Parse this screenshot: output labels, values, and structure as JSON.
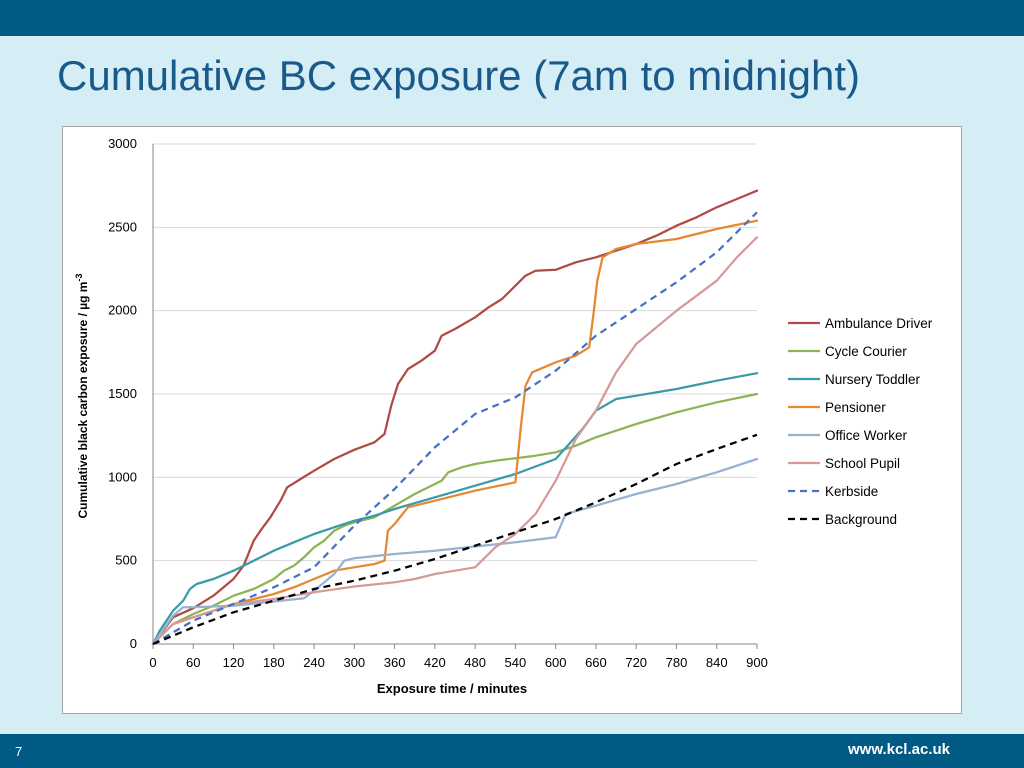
{
  "slide": {
    "title": "Cumulative BC exposure (7am to midnight)",
    "number": "7",
    "url": "www.kcl.ac.uk"
  },
  "colors": {
    "bar": "#005a84",
    "background": "#d5eef6",
    "title": "#1a5a8a"
  },
  "chart_data": {
    "type": "line",
    "xlabel": "Exposure time / minutes",
    "ylabel": "Cumulative black carbon exposure / µg m",
    "ylabel_superscript": "-3",
    "xlim": [
      0,
      900
    ],
    "ylim": [
      0,
      3000
    ],
    "xticks": [
      0,
      60,
      120,
      180,
      240,
      300,
      360,
      420,
      480,
      540,
      600,
      660,
      720,
      780,
      840,
      900
    ],
    "yticks": [
      0,
      500,
      1000,
      1500,
      2000,
      2500,
      3000
    ],
    "grid": "horizontal",
    "legend_position": "right",
    "series": [
      {
        "name": "Ambulance Driver",
        "color": "#b04a45",
        "dash": "solid",
        "points": [
          [
            0,
            0
          ],
          [
            30,
            160
          ],
          [
            60,
            215
          ],
          [
            90,
            290
          ],
          [
            120,
            390
          ],
          [
            135,
            470
          ],
          [
            150,
            620
          ],
          [
            160,
            680
          ],
          [
            175,
            760
          ],
          [
            190,
            860
          ],
          [
            200,
            940
          ],
          [
            220,
            990
          ],
          [
            240,
            1040
          ],
          [
            270,
            1110
          ],
          [
            300,
            1165
          ],
          [
            330,
            1210
          ],
          [
            345,
            1260
          ],
          [
            355,
            1430
          ],
          [
            365,
            1560
          ],
          [
            380,
            1650
          ],
          [
            400,
            1700
          ],
          [
            420,
            1760
          ],
          [
            430,
            1850
          ],
          [
            450,
            1890
          ],
          [
            480,
            1960
          ],
          [
            500,
            2020
          ],
          [
            520,
            2070
          ],
          [
            540,
            2150
          ],
          [
            555,
            2210
          ],
          [
            570,
            2240
          ],
          [
            600,
            2245
          ],
          [
            630,
            2290
          ],
          [
            660,
            2320
          ],
          [
            690,
            2360
          ],
          [
            720,
            2400
          ],
          [
            750,
            2450
          ],
          [
            780,
            2510
          ],
          [
            810,
            2560
          ],
          [
            840,
            2620
          ],
          [
            870,
            2670
          ],
          [
            900,
            2720
          ]
        ]
      },
      {
        "name": "Cycle Courier",
        "color": "#8db352",
        "dash": "solid",
        "points": [
          [
            0,
            0
          ],
          [
            30,
            120
          ],
          [
            60,
            180
          ],
          [
            90,
            230
          ],
          [
            120,
            290
          ],
          [
            150,
            330
          ],
          [
            180,
            390
          ],
          [
            195,
            440
          ],
          [
            210,
            470
          ],
          [
            225,
            520
          ],
          [
            240,
            580
          ],
          [
            255,
            620
          ],
          [
            270,
            680
          ],
          [
            285,
            710
          ],
          [
            300,
            730
          ],
          [
            330,
            760
          ],
          [
            360,
            830
          ],
          [
            390,
            900
          ],
          [
            420,
            960
          ],
          [
            430,
            980
          ],
          [
            440,
            1030
          ],
          [
            460,
            1060
          ],
          [
            480,
            1080
          ],
          [
            510,
            1100
          ],
          [
            540,
            1115
          ],
          [
            570,
            1130
          ],
          [
            600,
            1150
          ],
          [
            630,
            1190
          ],
          [
            660,
            1240
          ],
          [
            690,
            1280
          ],
          [
            720,
            1320
          ],
          [
            780,
            1390
          ],
          [
            840,
            1450
          ],
          [
            900,
            1500
          ]
        ]
      },
      {
        "name": "Nursery Toddler",
        "color": "#3a9aa8",
        "dash": "solid",
        "points": [
          [
            0,
            0
          ],
          [
            10,
            80
          ],
          [
            20,
            140
          ],
          [
            30,
            200
          ],
          [
            45,
            260
          ],
          [
            55,
            330
          ],
          [
            65,
            360
          ],
          [
            90,
            390
          ],
          [
            120,
            440
          ],
          [
            150,
            500
          ],
          [
            180,
            560
          ],
          [
            210,
            610
          ],
          [
            240,
            660
          ],
          [
            270,
            700
          ],
          [
            300,
            740
          ],
          [
            330,
            770
          ],
          [
            360,
            810
          ],
          [
            420,
            880
          ],
          [
            480,
            950
          ],
          [
            540,
            1020
          ],
          [
            600,
            1110
          ],
          [
            620,
            1200
          ],
          [
            640,
            1290
          ],
          [
            660,
            1400
          ],
          [
            690,
            1470
          ],
          [
            720,
            1490
          ],
          [
            780,
            1530
          ],
          [
            840,
            1580
          ],
          [
            900,
            1625
          ]
        ]
      },
      {
        "name": "Pensioner",
        "color": "#e48932",
        "dash": "solid",
        "points": [
          [
            0,
            0
          ],
          [
            30,
            120
          ],
          [
            60,
            160
          ],
          [
            90,
            200
          ],
          [
            120,
            240
          ],
          [
            150,
            270
          ],
          [
            180,
            300
          ],
          [
            210,
            340
          ],
          [
            240,
            390
          ],
          [
            270,
            440
          ],
          [
            300,
            460
          ],
          [
            330,
            480
          ],
          [
            345,
            500
          ],
          [
            350,
            680
          ],
          [
            360,
            720
          ],
          [
            380,
            820
          ],
          [
            420,
            860
          ],
          [
            480,
            920
          ],
          [
            540,
            970
          ],
          [
            548,
            1300
          ],
          [
            555,
            1550
          ],
          [
            565,
            1630
          ],
          [
            600,
            1690
          ],
          [
            630,
            1730
          ],
          [
            650,
            1780
          ],
          [
            657,
            2000
          ],
          [
            662,
            2180
          ],
          [
            670,
            2320
          ],
          [
            690,
            2370
          ],
          [
            720,
            2400
          ],
          [
            780,
            2430
          ],
          [
            840,
            2490
          ],
          [
            900,
            2540
          ]
        ]
      },
      {
        "name": "Office Worker",
        "color": "#97b1d1",
        "dash": "solid",
        "points": [
          [
            0,
            0
          ],
          [
            30,
            170
          ],
          [
            45,
            220
          ],
          [
            60,
            220
          ],
          [
            120,
            230
          ],
          [
            180,
            255
          ],
          [
            225,
            275
          ],
          [
            240,
            320
          ],
          [
            270,
            420
          ],
          [
            285,
            500
          ],
          [
            300,
            515
          ],
          [
            360,
            540
          ],
          [
            420,
            560
          ],
          [
            480,
            585
          ],
          [
            540,
            610
          ],
          [
            600,
            640
          ],
          [
            615,
            780
          ],
          [
            660,
            830
          ],
          [
            720,
            900
          ],
          [
            780,
            960
          ],
          [
            840,
            1030
          ],
          [
            900,
            1110
          ]
        ]
      },
      {
        "name": "School Pupil",
        "color": "#d59a98",
        "dash": "solid",
        "points": [
          [
            0,
            0
          ],
          [
            30,
            120
          ],
          [
            60,
            160
          ],
          [
            90,
            200
          ],
          [
            120,
            240
          ],
          [
            180,
            270
          ],
          [
            240,
            310
          ],
          [
            300,
            345
          ],
          [
            360,
            370
          ],
          [
            390,
            390
          ],
          [
            420,
            420
          ],
          [
            450,
            440
          ],
          [
            480,
            460
          ],
          [
            495,
            520
          ],
          [
            510,
            580
          ],
          [
            540,
            660
          ],
          [
            570,
            780
          ],
          [
            600,
            980
          ],
          [
            630,
            1230
          ],
          [
            660,
            1400
          ],
          [
            690,
            1630
          ],
          [
            720,
            1800
          ],
          [
            780,
            2000
          ],
          [
            840,
            2180
          ],
          [
            870,
            2320
          ],
          [
            900,
            2440
          ]
        ]
      },
      {
        "name": "Kerbside",
        "color": "#4472c4",
        "dash": "dashed",
        "points": [
          [
            0,
            0
          ],
          [
            60,
            140
          ],
          [
            120,
            240
          ],
          [
            180,
            340
          ],
          [
            240,
            460
          ],
          [
            300,
            710
          ],
          [
            360,
            930
          ],
          [
            420,
            1180
          ],
          [
            480,
            1380
          ],
          [
            540,
            1480
          ],
          [
            600,
            1640
          ],
          [
            660,
            1850
          ],
          [
            720,
            2010
          ],
          [
            780,
            2170
          ],
          [
            840,
            2350
          ],
          [
            900,
            2590
          ]
        ]
      },
      {
        "name": "Background",
        "color": "#000000",
        "dash": "dashed",
        "points": [
          [
            0,
            0
          ],
          [
            60,
            100
          ],
          [
            120,
            190
          ],
          [
            180,
            260
          ],
          [
            240,
            330
          ],
          [
            300,
            380
          ],
          [
            360,
            440
          ],
          [
            420,
            510
          ],
          [
            480,
            590
          ],
          [
            540,
            670
          ],
          [
            600,
            750
          ],
          [
            660,
            850
          ],
          [
            720,
            960
          ],
          [
            780,
            1080
          ],
          [
            840,
            1170
          ],
          [
            900,
            1255
          ]
        ]
      }
    ]
  }
}
